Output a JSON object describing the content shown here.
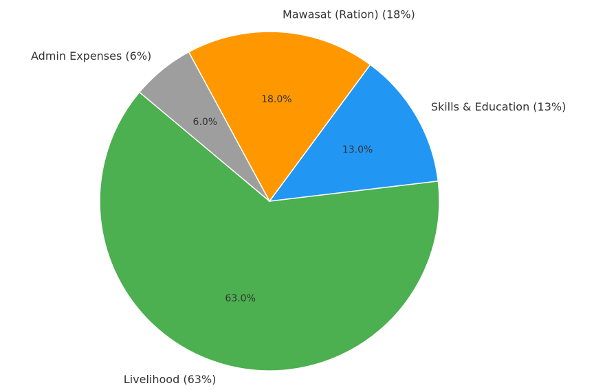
{
  "chart_data": {
    "type": "pie",
    "categories": [
      "Livelihood (63%)",
      "Skills & Education (13%)",
      "Mawasat (Ration) (18%)",
      "Admin Expenses (6%)"
    ],
    "values": [
      63,
      13,
      18,
      6
    ],
    "value_labels": [
      "63.0%",
      "13.0%",
      "18.0%",
      "6.0%"
    ],
    "colors": [
      "#4caf50",
      "#2196f3",
      "#ff9800",
      "#9e9e9e"
    ]
  }
}
